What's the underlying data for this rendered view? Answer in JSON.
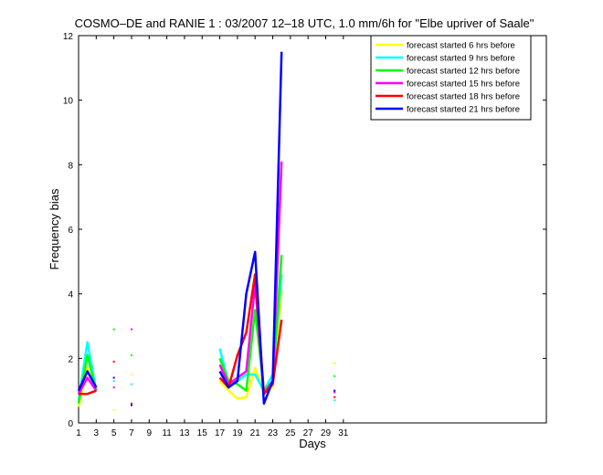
{
  "chart_data": {
    "type": "line",
    "title": "COSMO–DE and RANIE 1 : 03/2007 12–18 UTC, 1.0 mm/6h for \"Elbe upriver of Saale\"",
    "xlabel": "Days",
    "ylabel": "Frequency bias",
    "xlim": [
      1,
      54
    ],
    "ylim": [
      0,
      12
    ],
    "xticks": [
      1,
      3,
      5,
      7,
      9,
      11,
      13,
      15,
      17,
      19,
      21,
      23,
      25,
      27,
      29,
      31
    ],
    "yticks": [
      0,
      2,
      4,
      6,
      8,
      10,
      12
    ],
    "grid": false,
    "legend_position": "top-right",
    "series": [
      {
        "name": "forecast started 6 hrs before",
        "color": "#ffff00",
        "x": [
          1,
          2,
          3,
          5,
          7,
          17,
          18,
          19,
          20,
          21,
          22,
          23,
          24,
          30
        ],
        "y": [
          0.5,
          1.7,
          1.0,
          0.4,
          1.5,
          1.3,
          1.0,
          0.75,
          0.8,
          1.7,
          0.9,
          1.1,
          4.1,
          1.85
        ]
      },
      {
        "name": "forecast started 9 hrs before",
        "color": "#00ffff",
        "x": [
          1,
          2,
          3,
          5,
          7,
          17,
          18,
          19,
          20,
          21,
          22,
          23,
          24,
          30
        ],
        "y": [
          0.7,
          2.5,
          1.0,
          1.3,
          1.2,
          2.3,
          1.2,
          1.3,
          1.5,
          1.5,
          1.0,
          1.5,
          4.6,
          0.7
        ]
      },
      {
        "name": "forecast started 12 hrs before",
        "color": "#00ff00",
        "x": [
          1,
          2,
          3,
          5,
          7,
          17,
          18,
          19,
          20,
          21,
          22,
          23,
          24,
          30
        ],
        "y": [
          0.6,
          2.1,
          1.0,
          2.9,
          2.1,
          2.0,
          1.3,
          1.2,
          1.0,
          3.5,
          1.0,
          1.3,
          5.2,
          1.45
        ]
      },
      {
        "name": "forecast started 15 hrs before",
        "color": "#ff00ff",
        "x": [
          1,
          2,
          3,
          5,
          7,
          17,
          18,
          19,
          20,
          21,
          22,
          23,
          24,
          30
        ],
        "y": [
          0.9,
          1.4,
          1.0,
          1.1,
          2.9,
          1.8,
          1.2,
          1.4,
          1.6,
          4.3,
          0.9,
          1.3,
          8.1,
          0.95
        ]
      },
      {
        "name": "forecast started 18 hrs before",
        "color": "#ff0000",
        "x": [
          1,
          2,
          3,
          5,
          7,
          17,
          18,
          19,
          20,
          21,
          22,
          23,
          24,
          30
        ],
        "y": [
          0.9,
          0.9,
          1.0,
          1.9,
          0.6,
          1.4,
          1.1,
          2.1,
          2.8,
          4.6,
          0.9,
          1.2,
          3.2,
          0.8
        ]
      },
      {
        "name": "forecast started 21 hrs before",
        "color": "#0000ff",
        "x": [
          1,
          2,
          3,
          5,
          7,
          17,
          18,
          19,
          20,
          21,
          22,
          23,
          24,
          30
        ],
        "y": [
          1.0,
          1.6,
          1.1,
          1.4,
          0.55,
          1.6,
          1.1,
          1.3,
          4.0,
          5.3,
          0.6,
          1.3,
          11.5,
          1.0
        ]
      }
    ]
  }
}
